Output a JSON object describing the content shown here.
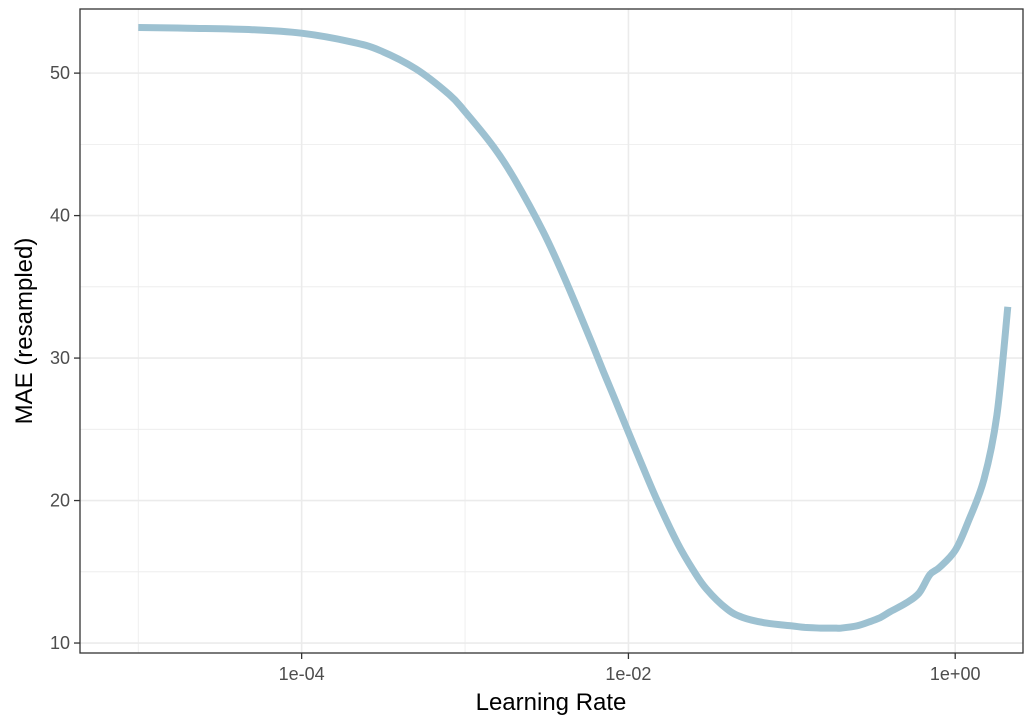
{
  "chart_data": {
    "type": "line",
    "title": "",
    "xlabel": "Learning Rate",
    "ylabel": "MAE (resampled)",
    "x_scale": "log10",
    "xlim": [
      4.4e-06,
      2.6
    ],
    "ylim": [
      9.3,
      54.5
    ],
    "x_ticks": [
      {
        "value": 0.0001,
        "label": "1e-04"
      },
      {
        "value": 0.01,
        "label": "1e-02"
      },
      {
        "value": 1,
        "label": "1e+00"
      }
    ],
    "y_ticks": [
      {
        "value": 10,
        "label": "10"
      },
      {
        "value": 20,
        "label": "20"
      },
      {
        "value": 30,
        "label": "30"
      },
      {
        "value": 40,
        "label": "40"
      },
      {
        "value": 50,
        "label": "50"
      }
    ],
    "x_minor_gridlines": [
      1e-05,
      0.001,
      0.1
    ],
    "y_minor_gridlines": [
      15,
      25,
      35,
      45
    ],
    "grid": true,
    "legend": "none",
    "colors": {
      "line": "#9dc1d1",
      "grid": "#ebebeb",
      "border": "#333333"
    },
    "series": [
      {
        "x": [
          1e-05,
          2e-05,
          5e-05,
          0.0001,
          0.0002,
          0.0003,
          0.0005,
          0.0008,
          0.001,
          0.0015,
          0.002,
          0.003,
          0.004,
          0.005,
          0.006,
          0.007,
          0.008,
          0.01,
          0.012,
          0.015,
          0.02,
          0.025,
          0.03,
          0.04,
          0.05,
          0.07,
          0.1,
          0.12,
          0.15,
          0.18,
          0.2,
          0.25,
          0.3,
          0.35,
          0.4,
          0.5,
          0.6,
          0.7,
          0.8,
          1.0,
          1.2,
          1.5,
          1.8,
          2.1
        ],
        "y": [
          53.2,
          53.15,
          53.05,
          52.8,
          52.2,
          51.6,
          50.3,
          48.5,
          47.3,
          44.8,
          42.6,
          38.9,
          35.8,
          33.2,
          31.0,
          29.1,
          27.5,
          24.8,
          22.6,
          20.0,
          17.0,
          15.1,
          13.8,
          12.4,
          11.8,
          11.4,
          11.2,
          11.1,
          11.05,
          11.05,
          11.05,
          11.2,
          11.5,
          11.8,
          12.2,
          12.8,
          13.5,
          14.8,
          15.3,
          16.5,
          18.5,
          21.5,
          26.0,
          33.6
        ]
      }
    ]
  }
}
